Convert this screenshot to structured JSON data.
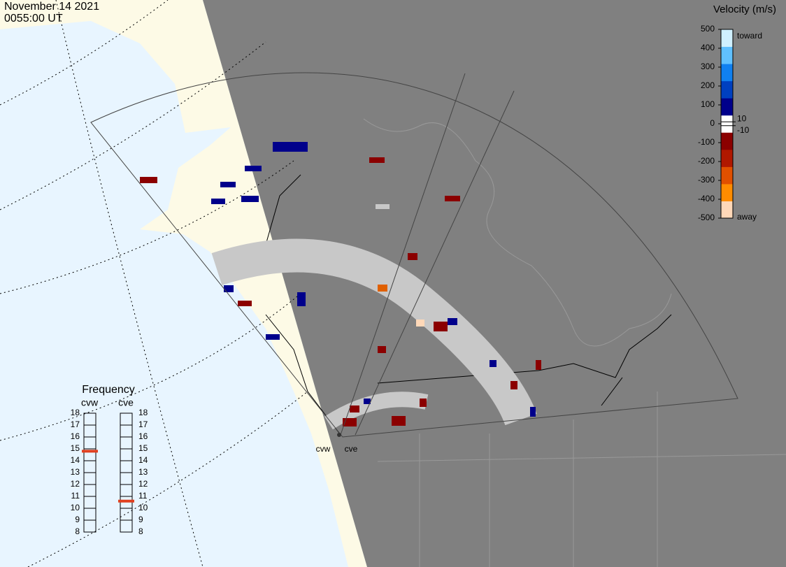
{
  "header": {
    "date": "November 14 2021",
    "time": "0055:00 UT"
  },
  "colorbar": {
    "title": "Velocity (m/s)",
    "range": [
      -500,
      500
    ],
    "ticks": [
      500,
      400,
      300,
      200,
      100,
      0,
      -100,
      -200,
      -300,
      -400,
      -500
    ],
    "thresholds": [
      10,
      -10
    ],
    "toward": "toward",
    "away": "away",
    "colors": [
      "#ffd8b8",
      "#ff8c00",
      "#e05000",
      "#b01800",
      "#8b0000",
      "#ffffff",
      "#00008b",
      "#0040c0",
      "#1080f0",
      "#60c0ff",
      "#d0f0ff"
    ]
  },
  "frequency": {
    "title": "Frequency",
    "range": [
      8,
      18
    ],
    "ticks": [
      18,
      17,
      16,
      15,
      14,
      13,
      12,
      11,
      10,
      9,
      8
    ],
    "radars": [
      {
        "name": "cvw",
        "value": 14.8
      },
      {
        "name": "cve",
        "value": 10.6
      }
    ]
  },
  "radar_sites": [
    "cvw",
    "cve"
  ]
}
